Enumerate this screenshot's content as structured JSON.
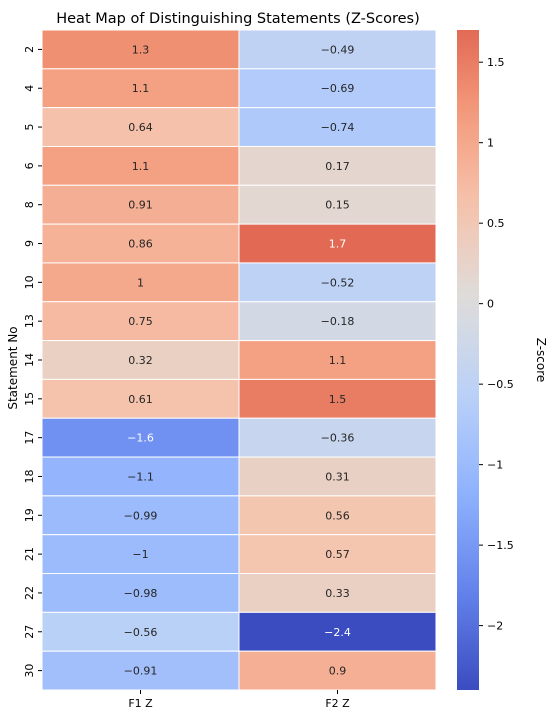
{
  "chart_data": {
    "type": "heatmap",
    "title": "Heat Map of Distinguishing Statements (Z-Scores)",
    "ylabel": "Statement No",
    "xlabel": "",
    "columns": [
      "F1 Z",
      "F2 Z"
    ],
    "rows": [
      "2",
      "4",
      "5",
      "6",
      "8",
      "9",
      "10",
      "13",
      "14",
      "15",
      "17",
      "18",
      "19",
      "21",
      "22",
      "27",
      "30"
    ],
    "values": [
      [
        1.3,
        -0.49
      ],
      [
        1.1,
        -0.69
      ],
      [
        0.64,
        -0.74
      ],
      [
        1.1,
        0.17
      ],
      [
        0.91,
        0.15
      ],
      [
        0.86,
        1.7
      ],
      [
        1,
        -0.52
      ],
      [
        0.75,
        -0.18
      ],
      [
        0.32,
        1.1
      ],
      [
        0.61,
        1.5
      ],
      [
        -1.6,
        -0.36
      ],
      [
        -1.1,
        0.31
      ],
      [
        -0.99,
        0.56
      ],
      [
        -1,
        0.57
      ],
      [
        -0.98,
        0.33
      ],
      [
        -0.56,
        -2.4
      ],
      [
        -0.91,
        0.9
      ]
    ],
    "labels": [
      [
        "1.3",
        "−0.49"
      ],
      [
        "1.1",
        "−0.69"
      ],
      [
        "0.64",
        "−0.74"
      ],
      [
        "1.1",
        "0.17"
      ],
      [
        "0.91",
        "0.15"
      ],
      [
        "0.86",
        "1.7"
      ],
      [
        "1",
        "−0.52"
      ],
      [
        "0.75",
        "−0.18"
      ],
      [
        "0.32",
        "1.1"
      ],
      [
        "0.61",
        "1.5"
      ],
      [
        "−1.6",
        "−0.36"
      ],
      [
        "−1.1",
        "0.31"
      ],
      [
        "−0.99",
        "0.56"
      ],
      [
        "−1",
        "0.57"
      ],
      [
        "−0.98",
        "0.33"
      ],
      [
        "−0.56",
        "−2.4"
      ],
      [
        "−0.91",
        "0.9"
      ]
    ],
    "colormap": "coolwarm",
    "vmin": -2.4,
    "vmax": 1.7,
    "center": 0,
    "colorbar": {
      "label": "Z-score",
      "ticks": [
        1.5,
        1,
        0.5,
        0,
        -0.5,
        -1,
        -1.5,
        -2
      ],
      "tick_labels": [
        "1.5",
        "1",
        "0.5",
        "0",
        "−0.5",
        "−1",
        "−1.5",
        "−2"
      ]
    },
    "legend_position": "right"
  }
}
